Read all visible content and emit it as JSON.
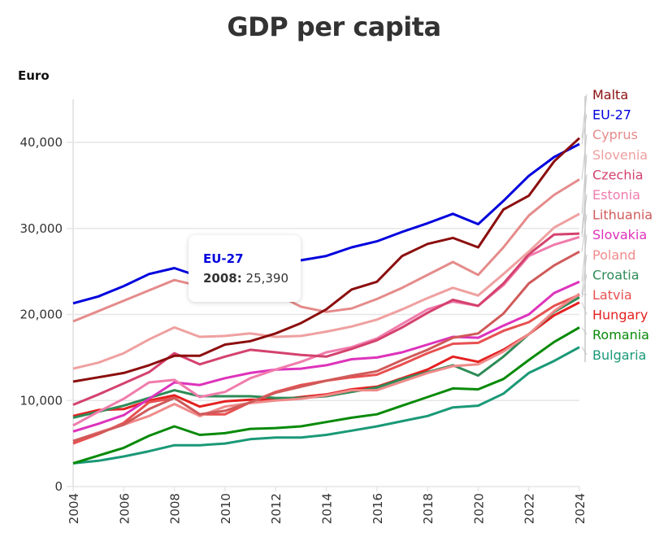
{
  "chart_data": {
    "type": "line",
    "title": "GDP per capita",
    "xlabel": "",
    "ylabel": "Euro",
    "xlim": [
      2004,
      2024
    ],
    "ylim": [
      0,
      45000
    ],
    "grid": true,
    "legend_placement": "right",
    "x": [
      2004,
      2005,
      2006,
      2007,
      2008,
      2009,
      2010,
      2011,
      2012,
      2013,
      2014,
      2015,
      2016,
      2017,
      2018,
      2019,
      2020,
      2021,
      2022,
      2023,
      2024
    ],
    "x_ticks": [
      "2004",
      "2006",
      "2008",
      "2010",
      "2012",
      "2014",
      "2016",
      "2018",
      "2020",
      "2022",
      "2024"
    ],
    "y_ticks": [
      {
        "value": 0,
        "label": "0"
      },
      {
        "value": 10000,
        "label": "10,000"
      },
      {
        "value": 20000,
        "label": "20,000"
      },
      {
        "value": 30000,
        "label": "30,000"
      },
      {
        "value": 40000,
        "label": "40,000"
      }
    ],
    "series": [
      {
        "name": "Malta",
        "color": "#8b0e0e",
        "values": [
          12200,
          12700,
          13200,
          14100,
          15200,
          15200,
          16500,
          16900,
          17800,
          19000,
          20600,
          22900,
          23800,
          26800,
          28200,
          28900,
          27800,
          32200,
          33800,
          37800,
          40500
        ]
      },
      {
        "name": "EU-27",
        "color": "#0000dd",
        "values": [
          21300,
          22100,
          23300,
          24700,
          25390,
          24400,
          25000,
          25600,
          26000,
          26300,
          26800,
          27800,
          28500,
          29600,
          30600,
          31700,
          30500,
          33200,
          36100,
          38300,
          39800
        ]
      },
      {
        "name": "Cyprus",
        "color": "#e58b8b",
        "values": [
          19200,
          20400,
          21600,
          22800,
          24000,
          23300,
          23100,
          22800,
          22400,
          20900,
          20300,
          20700,
          21800,
          23100,
          24600,
          26100,
          24600,
          27800,
          31500,
          33900,
          35700
        ]
      },
      {
        "name": "Slovenia",
        "color": "#efa0a0",
        "values": [
          13700,
          14400,
          15500,
          17100,
          18500,
          17400,
          17500,
          17800,
          17400,
          17500,
          18000,
          18600,
          19400,
          20600,
          21900,
          23100,
          22200,
          24700,
          27300,
          30100,
          31700
        ]
      },
      {
        "name": "Czechia",
        "color": "#d4426e",
        "values": [
          9500,
          10700,
          12000,
          13300,
          15500,
          14200,
          15100,
          15900,
          15600,
          15300,
          15100,
          16000,
          17000,
          18500,
          20200,
          21700,
          21000,
          23600,
          27000,
          29300,
          29400
        ]
      },
      {
        "name": "Estonia",
        "color": "#f07cac",
        "values": [
          7100,
          8700,
          10200,
          12100,
          12400,
          10400,
          11000,
          12600,
          13600,
          14500,
          15600,
          16200,
          17200,
          18900,
          20600,
          21500,
          21000,
          23400,
          26800,
          28100,
          29000
        ]
      },
      {
        "name": "Lithuania",
        "color": "#d05a5a",
        "values": [
          5300,
          6200,
          7200,
          9000,
          10300,
          8400,
          8800,
          9800,
          10900,
          11600,
          12300,
          12900,
          13400,
          14700,
          15900,
          17300,
          17800,
          20100,
          23600,
          25700,
          27300
        ]
      },
      {
        "name": "Slovakia",
        "color": "#dd33bb",
        "values": [
          6400,
          7300,
          8300,
          10200,
          12100,
          11800,
          12600,
          13200,
          13600,
          13700,
          14100,
          14800,
          15000,
          15600,
          16500,
          17400,
          17300,
          18700,
          20000,
          22500,
          23800
        ]
      },
      {
        "name": "Poland",
        "color": "#f08a8a",
        "values": [
          5300,
          6300,
          7200,
          8200,
          9600,
          8200,
          9300,
          9700,
          10000,
          10200,
          10600,
          11200,
          11200,
          12200,
          13200,
          14000,
          14200,
          15700,
          17700,
          20400,
          22400
        ]
      },
      {
        "name": "Croatia",
        "color": "#2e8b57",
        "values": [
          8000,
          8700,
          9400,
          10300,
          11200,
          10500,
          10500,
          10500,
          10300,
          10300,
          10500,
          11000,
          11500,
          12500,
          13300,
          14100,
          12900,
          15100,
          17700,
          20300,
          22000
        ]
      },
      {
        "name": "Latvia",
        "color": "#e85050",
        "values": [
          5000,
          6100,
          7400,
          9800,
          10300,
          8400,
          8400,
          9800,
          11000,
          11800,
          12300,
          12700,
          13000,
          14200,
          15500,
          16600,
          16700,
          18100,
          19100,
          21000,
          22300
        ]
      },
      {
        "name": "Hungary",
        "color": "#e52020",
        "values": [
          8200,
          8900,
          9000,
          10000,
          10600,
          9300,
          9900,
          10100,
          10100,
          10400,
          10700,
          11300,
          11600,
          12600,
          13600,
          15100,
          14500,
          15900,
          17700,
          19900,
          21400
        ]
      },
      {
        "name": "Romania",
        "color": "#088a08",
        "values": [
          2700,
          3600,
          4500,
          5900,
          7000,
          6000,
          6200,
          6700,
          6800,
          7000,
          7500,
          8000,
          8400,
          9400,
          10400,
          11400,
          11300,
          12500,
          14700,
          16800,
          18500
        ]
      },
      {
        "name": "Bulgaria",
        "color": "#1a9977",
        "values": [
          2700,
          3000,
          3500,
          4100,
          4800,
          4800,
          5000,
          5500,
          5700,
          5700,
          6000,
          6500,
          7000,
          7600,
          8200,
          9200,
          9400,
          10800,
          13200,
          14600,
          16200
        ]
      }
    ],
    "tooltip": {
      "series": "EU-27",
      "year": "2008:",
      "value": "25,390"
    }
  }
}
